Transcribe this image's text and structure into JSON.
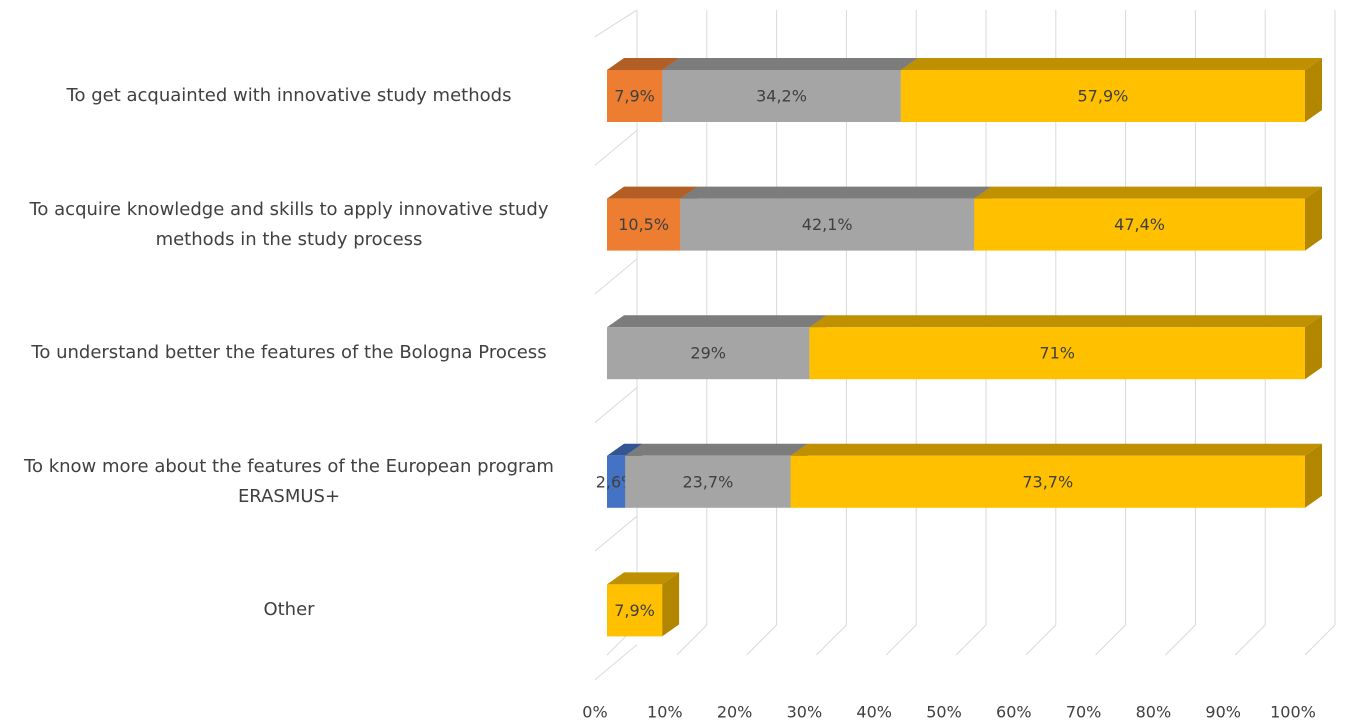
{
  "chart_data": {
    "type": "bar",
    "categories": [
      "To get acquainted with  innovative study methods",
      "To acquire knowledge and skills to apply innovative study methods in the study process",
      "To understand better the features of the Bologna Process",
      "To know more about the features  of the European program  ERASMUS+",
      "Other"
    ],
    "series": [
      {
        "color": "#4472c4",
        "values": [
          null,
          null,
          null,
          2.6,
          null
        ],
        "value_labels": [
          null,
          null,
          null,
          "2,6%",
          null
        ]
      },
      {
        "color": "#ed7d31",
        "values": [
          7.9,
          10.5,
          null,
          null,
          null
        ],
        "value_labels": [
          "7,9%",
          "10,5%",
          null,
          null,
          null
        ]
      },
      {
        "color": "#a5a5a5",
        "values": [
          34.2,
          42.1,
          29,
          23.7,
          null
        ],
        "value_labels": [
          "34,2%",
          "42,1%",
          "29%",
          "23,7%",
          null
        ]
      },
      {
        "color": "#ffc000",
        "values": [
          57.9,
          47.4,
          71,
          73.7,
          7.9
        ],
        "value_labels": [
          "57,9%",
          "47,4%",
          "71%",
          "73,7%",
          "7,9%"
        ]
      }
    ],
    "xlim": [
      0,
      100
    ],
    "xticks": [
      {
        "value": 0,
        "label": "0%"
      },
      {
        "value": 10,
        "label": "10%"
      },
      {
        "value": 20,
        "label": "20%"
      },
      {
        "value": 30,
        "label": "30%"
      },
      {
        "value": 40,
        "label": "40%"
      },
      {
        "value": 50,
        "label": "50%"
      },
      {
        "value": 60,
        "label": "60%"
      },
      {
        "value": 70,
        "label": "70%"
      },
      {
        "value": 80,
        "label": "80%"
      },
      {
        "value": 90,
        "label": "90%"
      },
      {
        "value": 100,
        "label": "100%"
      }
    ],
    "stacked": true,
    "grid": true
  }
}
